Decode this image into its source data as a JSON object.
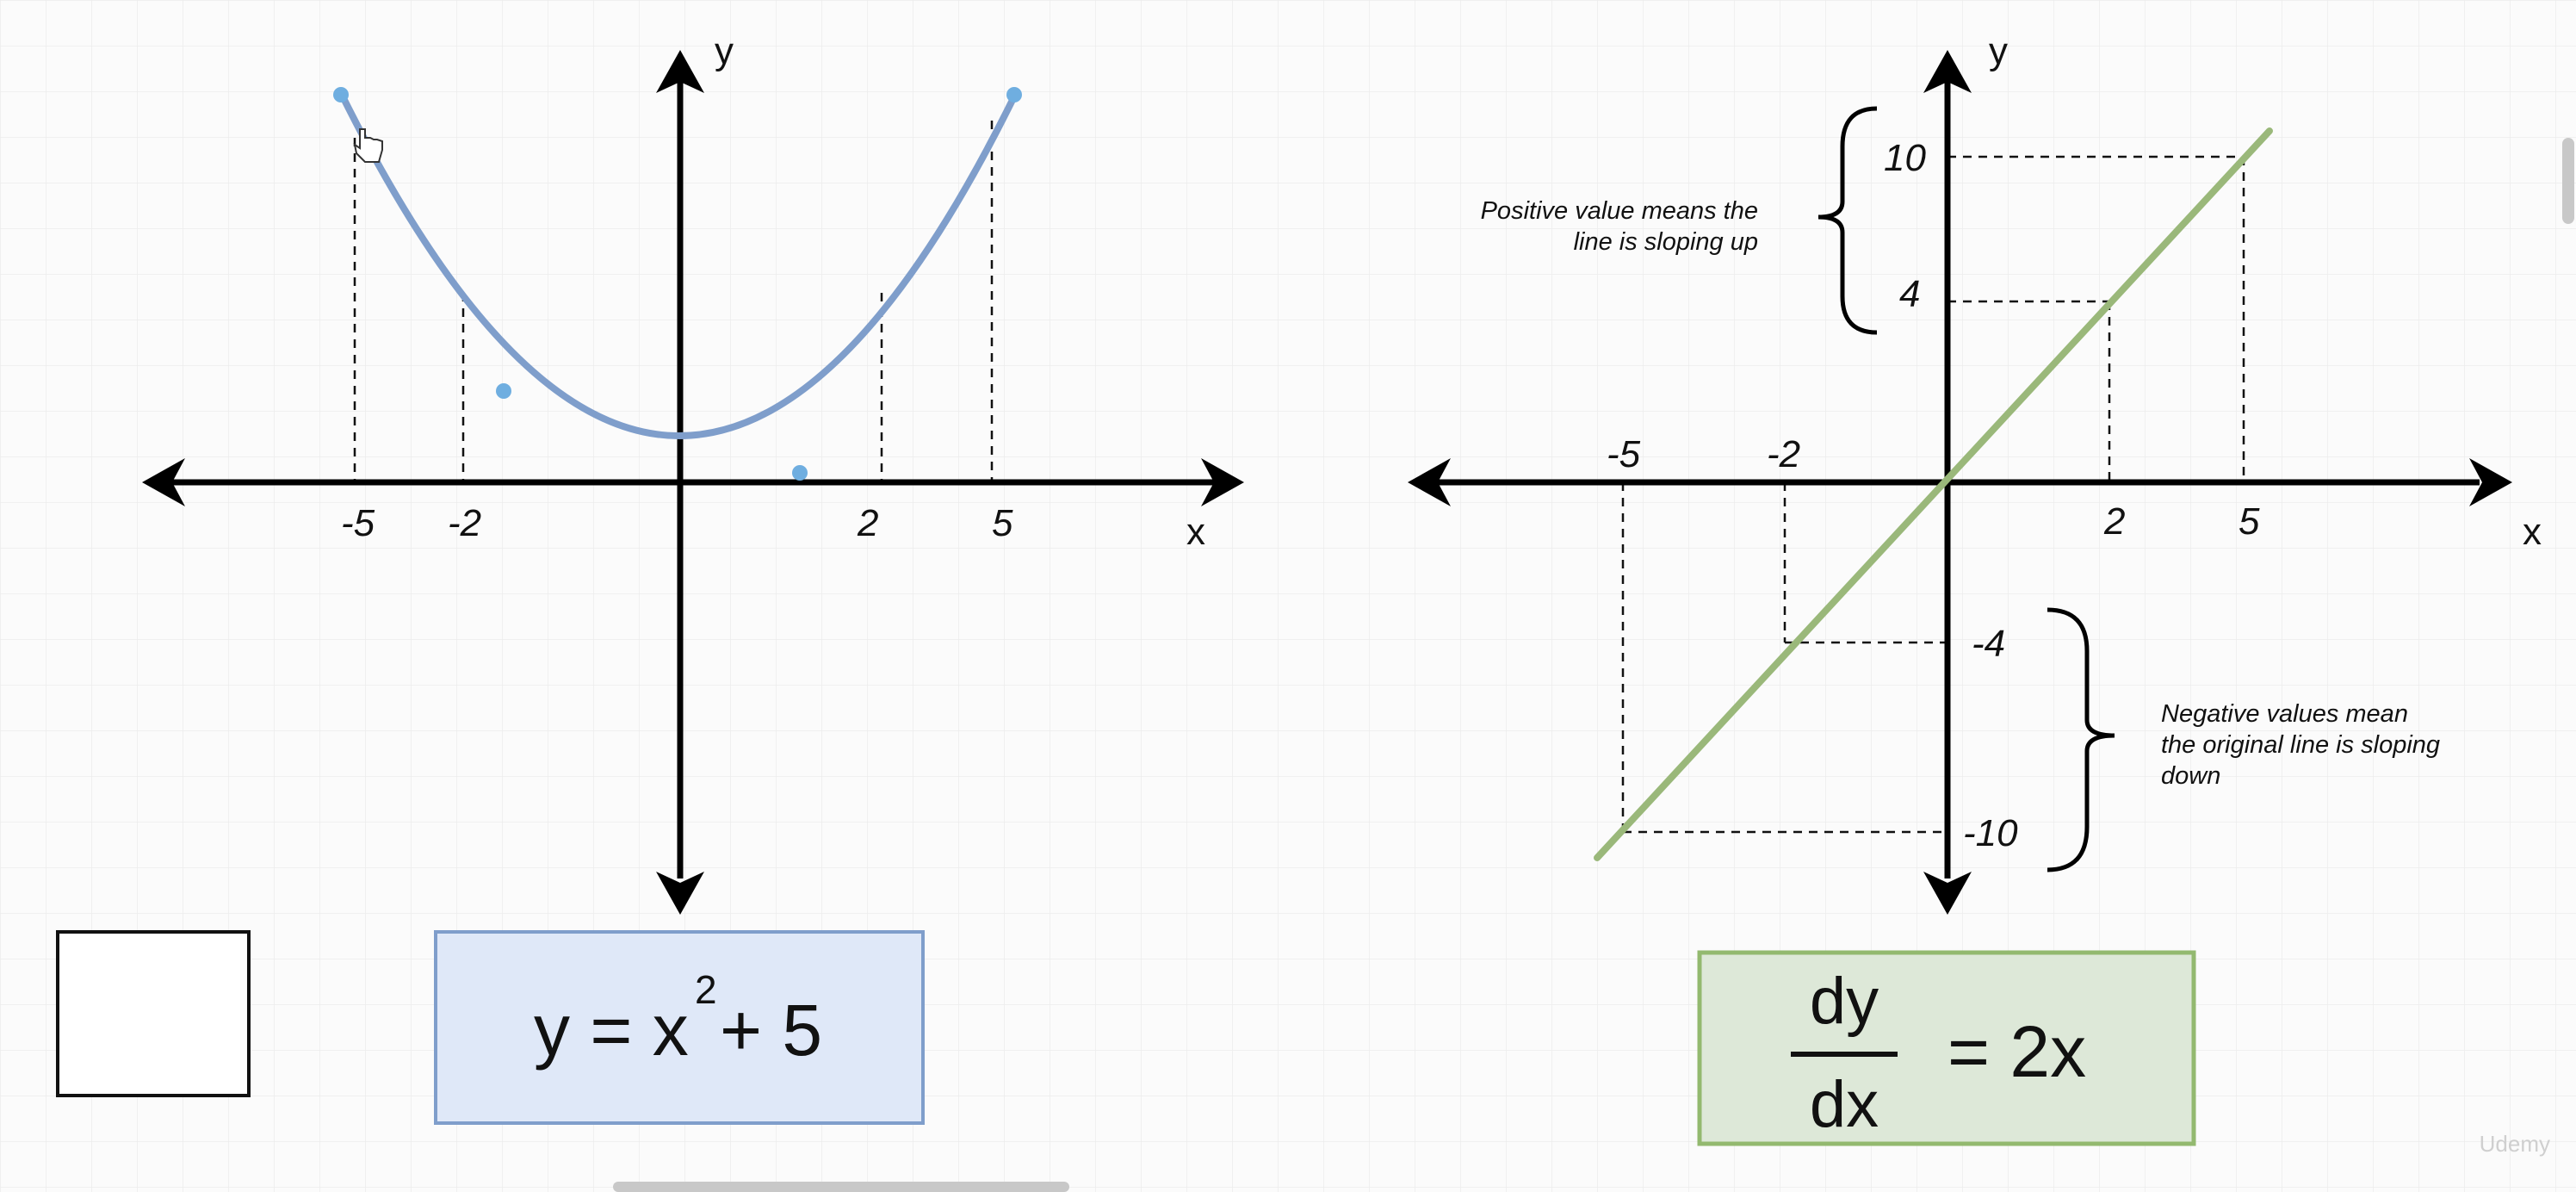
{
  "diagram": {
    "function_graph": {
      "x_axis_label": "x",
      "y_axis_label": "y",
      "tick_labels": [
        "-5",
        "-2",
        "2",
        "5"
      ],
      "equation": {
        "lhs": "y = x",
        "exponent": "2",
        "rhs": "+ 5"
      },
      "curve_color": "#7f9ecb",
      "point_color": "#6faee0"
    },
    "derivative_graph": {
      "x_axis_label": "x",
      "y_axis_label": "y",
      "x_tick_labels": [
        "-5",
        "-2",
        "2",
        "5"
      ],
      "y_tick_labels": [
        "10",
        "4",
        "-4",
        "-10"
      ],
      "annotation_positive": [
        "Positive value means the",
        "line is sloping up"
      ],
      "annotation_negative": [
        "Negative values mean",
        "the original line is sloping",
        "down"
      ],
      "equation": {
        "numerator": "dy",
        "denominator": "dx",
        "rhs": "= 2x"
      },
      "line_color": "#9ab87a"
    },
    "colors": {
      "equation1_fill": "#dfe8f8",
      "equation1_border": "#7f9ecb",
      "equation2_fill": "#dde8d8",
      "equation2_border": "#93b96f"
    }
  },
  "watermark": "Udemy"
}
